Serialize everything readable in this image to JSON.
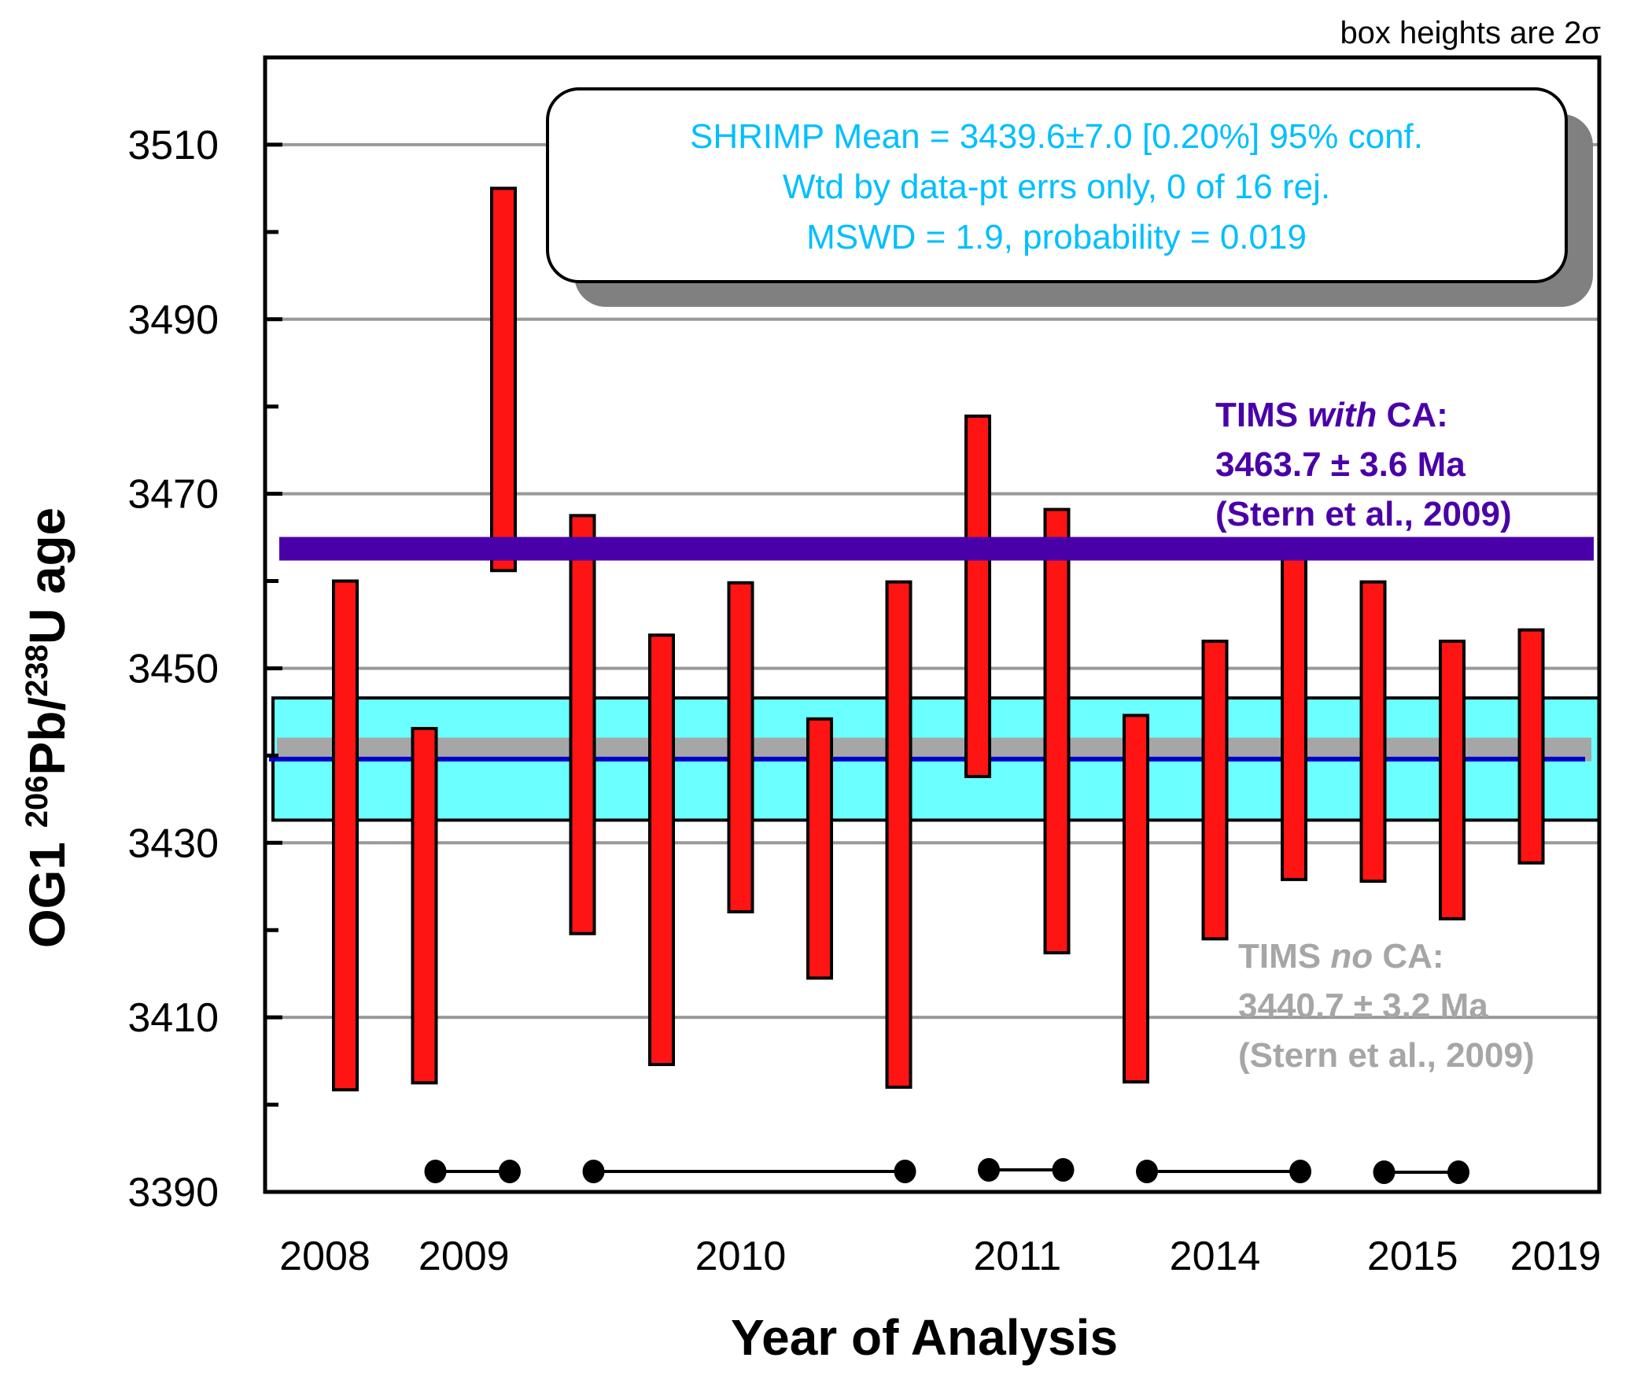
{
  "chart_data": {
    "type": "bar",
    "subtype": "floating error boxes (2σ)",
    "note": "box heights are 2σ",
    "ylabel": {
      "prefix": "OG1 ",
      "sup1": "206",
      "mid": "Pb/",
      "sup2": "238",
      "suffix": "U age"
    },
    "xlabel": "Year of Analysis",
    "ylim": [
      3390,
      3520
    ],
    "y_ticks_major": [
      3390,
      3410,
      3430,
      3450,
      3470,
      3490,
      3510
    ],
    "y_ticks_minor": [
      3400,
      3420,
      3440,
      3460,
      3480,
      3500
    ],
    "grid": "horizontal at major ticks",
    "x_slots": 16,
    "year_groups": [
      {
        "label": "2008",
        "first": 1,
        "last": 1
      },
      {
        "label": "2009",
        "first": 2,
        "last": 3
      },
      {
        "label": "2010",
        "first": 4,
        "last": 8
      },
      {
        "label": "2011",
        "first": 9,
        "last": 10
      },
      {
        "label": "2014",
        "first": 11,
        "last": 13
      },
      {
        "label": "2015",
        "first": 14,
        "last": 15
      },
      {
        "label": "2019",
        "first": 16,
        "last": 16
      }
    ],
    "boxes": [
      {
        "analysis": 1,
        "low": 3401.7,
        "high": 3460.0
      },
      {
        "analysis": 2,
        "low": 3402.5,
        "high": 3443.1
      },
      {
        "analysis": 3,
        "low": 3461.2,
        "high": 3505.0
      },
      {
        "analysis": 4,
        "low": 3419.6,
        "high": 3467.5
      },
      {
        "analysis": 5,
        "low": 3404.6,
        "high": 3453.8
      },
      {
        "analysis": 6,
        "low": 3422.1,
        "high": 3459.8
      },
      {
        "analysis": 7,
        "low": 3414.5,
        "high": 3444.2
      },
      {
        "analysis": 8,
        "low": 3402.0,
        "high": 3459.9
      },
      {
        "analysis": 9,
        "low": 3437.6,
        "high": 3478.9
      },
      {
        "analysis": 10,
        "low": 3417.4,
        "high": 3468.2
      },
      {
        "analysis": 11,
        "low": 3402.6,
        "high": 3444.6
      },
      {
        "analysis": 12,
        "low": 3419.0,
        "high": 3453.1
      },
      {
        "analysis": 13,
        "low": 3425.8,
        "high": 3463.0
      },
      {
        "analysis": 14,
        "low": 3425.6,
        "high": 3459.9
      },
      {
        "analysis": 15,
        "low": 3421.3,
        "high": 3453.1
      },
      {
        "analysis": 16,
        "low": 3427.7,
        "high": 3454.4
      }
    ],
    "weighted_mean": {
      "value": 3439.6,
      "error": 7.0,
      "band_low": 3432.6,
      "band_high": 3446.6
    },
    "reference_lines": [
      {
        "name": "TIMS with CA",
        "value": 3463.7,
        "error": 3.6,
        "color": "#4A00A8"
      },
      {
        "name": "TIMS no CA",
        "value": 3440.7,
        "error": 3.2,
        "color": "#A6A6A6"
      }
    ],
    "colors": {
      "box_fill": "#FF1414",
      "mean_band": "#6BFFFF",
      "mean_line": "#0000CC",
      "grid": "#999999",
      "legend_text": "#00BFFF",
      "shadow": "#808080"
    },
    "legend": {
      "placement": "top-right",
      "lines": [
        "SHRIMP Mean = 3439.6±7.0  [0.20%]  95% conf.",
        "Wtd by data-pt errs only, 0 of 16 rej.",
        "MSWD = 1.9, probability = 0.019"
      ]
    },
    "annotations": {
      "tims_with_ca": {
        "line1_a": "TIMS ",
        "line1_italic": "with",
        "line1_b": " CA:",
        "line2": "3463.7 ± 3.6 Ma",
        "line3": "(Stern et al., 2009)"
      },
      "tims_no_ca": {
        "line1_a": "TIMS ",
        "line1_italic": "no",
        "line1_b": " CA:",
        "line2": "3440.7 ± 3.2 Ma",
        "line3": "(Stern et al., 2009)"
      }
    }
  }
}
